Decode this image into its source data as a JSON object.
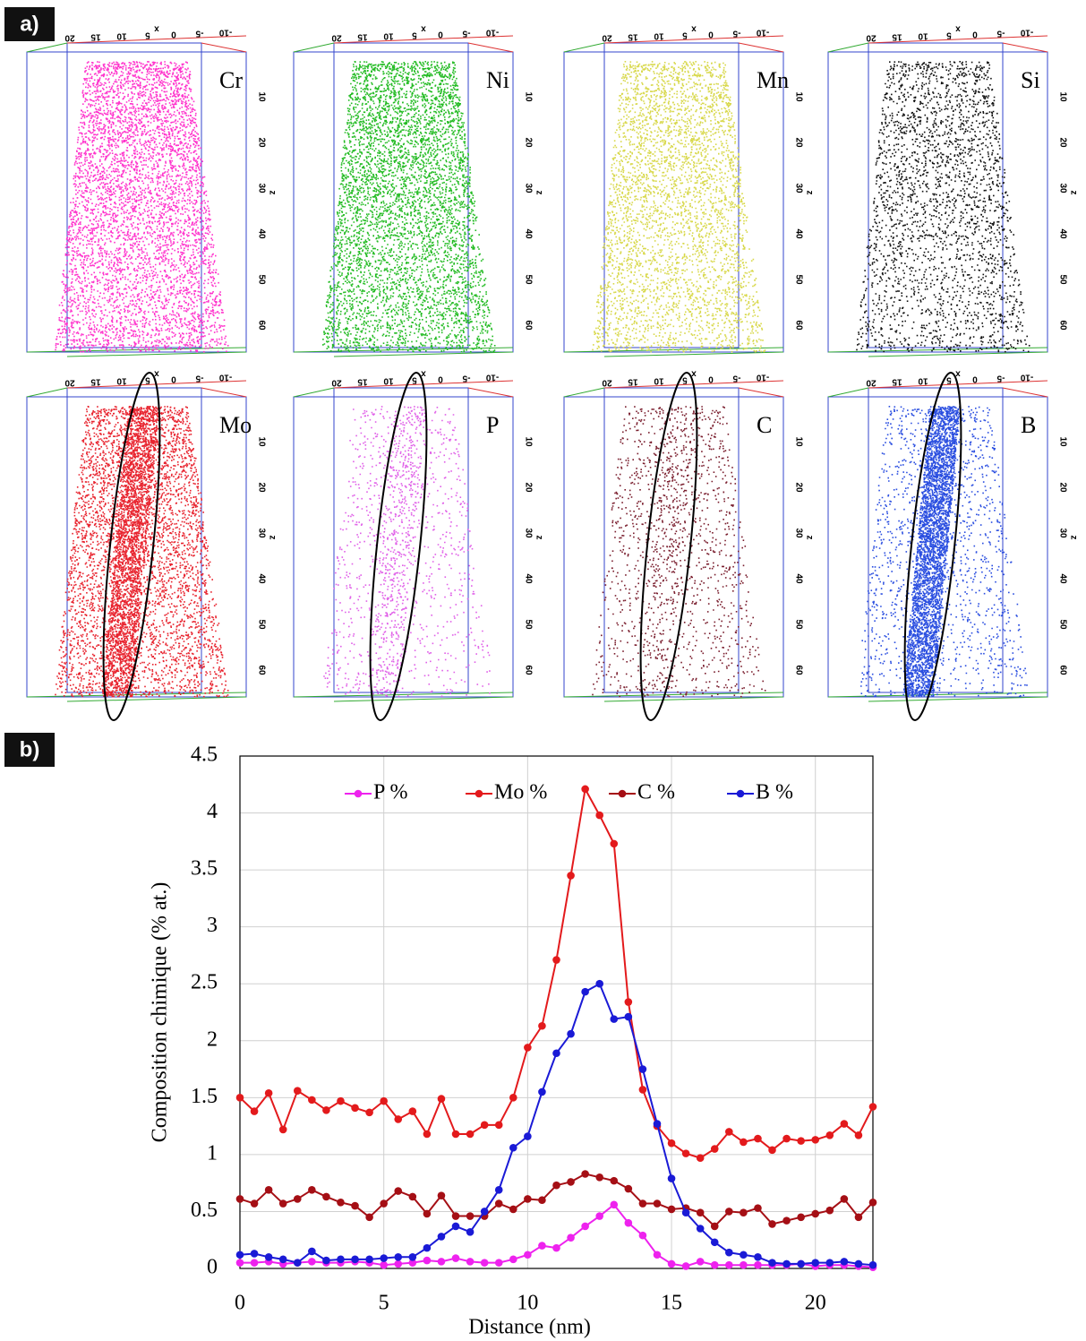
{
  "panel_labels": [
    "a)",
    "b)"
  ],
  "atom_maps": {
    "elements": [
      {
        "name": "Cr",
        "color": "#ff33cc",
        "highlighted": false
      },
      {
        "name": "Ni",
        "color": "#22bb22",
        "highlighted": false
      },
      {
        "name": "Mn",
        "color": "#d8d84a",
        "highlighted": false
      },
      {
        "name": "Si",
        "color": "#111111",
        "highlighted": false
      },
      {
        "name": "Mo",
        "color": "#e8232e",
        "highlighted": true
      },
      {
        "name": "P",
        "color": "#e060e8",
        "highlighted": true
      },
      {
        "name": "C",
        "color": "#7a1e2e",
        "highlighted": true
      },
      {
        "name": "B",
        "color": "#2a4ee0",
        "highlighted": true
      }
    ],
    "z_axis_label": "z",
    "z_ticks": [
      10,
      20,
      30,
      40,
      50,
      60
    ],
    "x_axis_label": "x",
    "x_ticks": [
      20,
      15,
      10,
      5,
      0,
      -5,
      -10
    ]
  },
  "chart_data": {
    "type": "line",
    "x_label": "Distance (nm)",
    "y_label": "Composition chimique (% at.)",
    "x": [
      0,
      0.5,
      1,
      1.5,
      2,
      2.5,
      3,
      3.5,
      4,
      4.5,
      5,
      5.5,
      6,
      6.5,
      7,
      7.5,
      8,
      8.5,
      9,
      9.5,
      10,
      10.5,
      11,
      11.5,
      12,
      12.5,
      13,
      13.5,
      14,
      14.5,
      15,
      15.5,
      16,
      16.5,
      17,
      17.5,
      18,
      18.5,
      19,
      19.5,
      20,
      20.5,
      21,
      21.5,
      22
    ],
    "series": [
      {
        "name": "P %",
        "color": "#ee22ee",
        "values": [
          0.05,
          0.05,
          0.06,
          0.04,
          0.05,
          0.06,
          0.05,
          0.05,
          0.06,
          0.05,
          0.03,
          0.04,
          0.05,
          0.07,
          0.06,
          0.09,
          0.06,
          0.05,
          0.05,
          0.08,
          0.12,
          0.2,
          0.18,
          0.27,
          0.37,
          0.46,
          0.56,
          0.4,
          0.29,
          0.12,
          0.04,
          0.02,
          0.06,
          0.03,
          0.03,
          0.03,
          0.03,
          0.03,
          0.03,
          0.04,
          0.02,
          0.03,
          0.03,
          0.02,
          0.01
        ]
      },
      {
        "name": "Mo %",
        "color": "#e31a1c",
        "values": [
          1.5,
          1.38,
          1.54,
          1.22,
          1.56,
          1.48,
          1.39,
          1.47,
          1.41,
          1.37,
          1.47,
          1.31,
          1.38,
          1.18,
          1.49,
          1.18,
          1.18,
          1.26,
          1.26,
          1.5,
          1.94,
          2.13,
          2.71,
          3.45,
          4.21,
          3.98,
          3.73,
          2.34,
          1.57,
          1.25,
          1.1,
          1.01,
          0.97,
          1.05,
          1.2,
          1.11,
          1.14,
          1.04,
          1.14,
          1.12,
          1.13,
          1.17,
          1.27,
          1.17,
          1.42
        ]
      },
      {
        "name": "C %",
        "color": "#a50f15",
        "values": [
          0.61,
          0.57,
          0.69,
          0.57,
          0.61,
          0.69,
          0.63,
          0.58,
          0.55,
          0.45,
          0.57,
          0.68,
          0.63,
          0.48,
          0.64,
          0.46,
          0.46,
          0.46,
          0.57,
          0.52,
          0.61,
          0.6,
          0.73,
          0.76,
          0.83,
          0.8,
          0.77,
          0.7,
          0.57,
          0.57,
          0.52,
          0.53,
          0.49,
          0.37,
          0.5,
          0.49,
          0.53,
          0.39,
          0.42,
          0.45,
          0.48,
          0.51,
          0.61,
          0.45,
          0.58
        ]
      },
      {
        "name": "B %",
        "color": "#1a1ad6",
        "values": [
          0.12,
          0.13,
          0.1,
          0.08,
          0.05,
          0.15,
          0.07,
          0.08,
          0.08,
          0.08,
          0.09,
          0.1,
          0.1,
          0.18,
          0.28,
          0.37,
          0.32,
          0.5,
          0.69,
          1.06,
          1.16,
          1.55,
          1.89,
          2.06,
          2.43,
          2.5,
          2.19,
          2.21,
          1.75,
          1.27,
          0.79,
          0.49,
          0.35,
          0.23,
          0.14,
          0.12,
          0.1,
          0.05,
          0.04,
          0.04,
          0.05,
          0.05,
          0.06,
          0.04,
          0.03
        ]
      }
    ],
    "xlim": [
      0,
      22
    ],
    "xticks": [
      0,
      5,
      10,
      15,
      20
    ],
    "ylim": [
      0,
      4.5
    ],
    "yticks": [
      0,
      0.5,
      1,
      1.5,
      2,
      2.5,
      3,
      3.5,
      4,
      4.5
    ],
    "grid": true,
    "legend": "top"
  }
}
